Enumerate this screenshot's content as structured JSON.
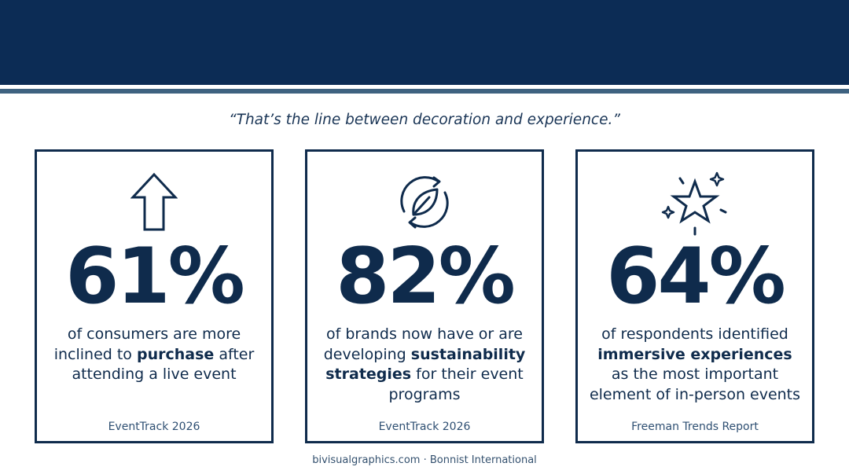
{
  "quote": "“That’s the line between decoration and experience.”",
  "cards": [
    {
      "icon": "arrow-up-icon",
      "stat": "61%",
      "desc": [
        {
          "t": "of consumers are more inclined to ",
          "b": false
        },
        {
          "t": "purchase",
          "b": true
        },
        {
          "t": " after attending a live event",
          "b": false
        }
      ],
      "source": "EventTrack 2026"
    },
    {
      "icon": "recycle-leaf-icon",
      "stat": "82%",
      "desc": [
        {
          "t": "of brands now have or are developing ",
          "b": false
        },
        {
          "t": "sustainability strategies",
          "b": true
        },
        {
          "t": " for their event programs",
          "b": false
        }
      ],
      "source": "EventTrack 2026"
    },
    {
      "icon": "sparkle-star-icon",
      "stat": "64%",
      "desc": [
        {
          "t": "of respondents identified ",
          "b": false
        },
        {
          "t": "immersive experiences",
          "b": true
        },
        {
          "t": " as the most important element of in-person events",
          "b": false
        }
      ],
      "source": "Freeman Trends Report"
    }
  ],
  "footer": "bivisualgraphics.com · Bonnist International",
  "colors": {
    "navy": "#0c2c55",
    "accent_line": "#3e6280",
    "text": "#0f2b4c"
  }
}
